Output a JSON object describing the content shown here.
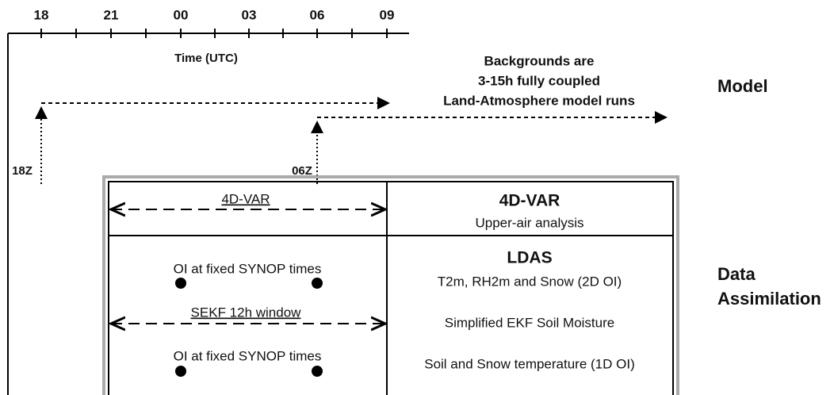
{
  "timeline": {
    "ticks": [
      "18",
      "21",
      "00",
      "03",
      "06",
      "09"
    ],
    "label": "Time (UTC)"
  },
  "model": {
    "label": "Model",
    "runs": [
      "18Z",
      "06Z"
    ],
    "note": [
      "Backgrounds are",
      "3-15h fully coupled",
      "Land-Atmosphere model runs"
    ]
  },
  "data_assimilation": {
    "label": [
      "Data",
      "Assimilation"
    ],
    "upper_air": {
      "window": "4D-VAR",
      "title": "4D-VAR",
      "description": "Upper-air analysis"
    },
    "land": {
      "oi_times": [
        "OI at fixed SYNOP times",
        "OI at fixed SYNOP times"
      ],
      "window": "SEKF 12h window",
      "title": "LDAS",
      "components": [
        "T2m, RH2m and Snow (2D OI)",
        "Simplified EKF Soil Moisture",
        "Soil and Snow temperature (1D OI)"
      ]
    }
  }
}
